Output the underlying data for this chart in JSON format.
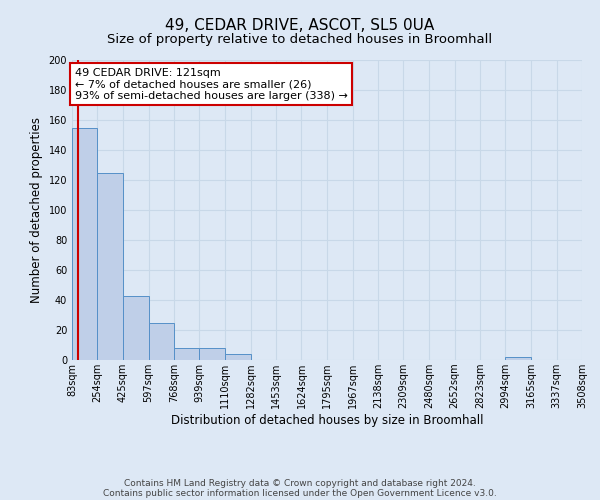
{
  "title": "49, CEDAR DRIVE, ASCOT, SL5 0UA",
  "subtitle": "Size of property relative to detached houses in Broomhall",
  "xlabel": "Distribution of detached houses by size in Broomhall",
  "ylabel": "Number of detached properties",
  "bar_values": [
    155,
    125,
    43,
    25,
    8,
    8,
    4,
    0,
    0,
    0,
    0,
    0,
    0,
    0,
    0,
    0,
    0,
    2,
    0,
    0
  ],
  "bin_edges": [
    83,
    254,
    425,
    597,
    768,
    939,
    1110,
    1282,
    1453,
    1624,
    1795,
    1967,
    2138,
    2309,
    2480,
    2652,
    2823,
    2994,
    3165,
    3337,
    3508
  ],
  "tick_labels": [
    "83sqm",
    "254sqm",
    "425sqm",
    "597sqm",
    "768sqm",
    "939sqm",
    "1110sqm",
    "1282sqm",
    "1453sqm",
    "1624sqm",
    "1795sqm",
    "1967sqm",
    "2138sqm",
    "2309sqm",
    "2480sqm",
    "2652sqm",
    "2823sqm",
    "2994sqm",
    "3165sqm",
    "3337sqm",
    "3508sqm"
  ],
  "bar_color": "#BFCFE8",
  "bar_edge_color": "#5590C8",
  "red_line_x": 121,
  "annotation_line1": "49 CEDAR DRIVE: 121sqm",
  "annotation_line2": "← 7% of detached houses are smaller (26)",
  "annotation_line3": "93% of semi-detached houses are larger (338) →",
  "annotation_box_color": "#ffffff",
  "annotation_border_color": "#cc0000",
  "ylim": [
    0,
    200
  ],
  "yticks": [
    0,
    20,
    40,
    60,
    80,
    100,
    120,
    140,
    160,
    180,
    200
  ],
  "background_color": "#dde8f5",
  "plot_bg_color": "#dde8f5",
  "grid_color": "#c8d8e8",
  "footer_line1": "Contains HM Land Registry data © Crown copyright and database right 2024.",
  "footer_line2": "Contains public sector information licensed under the Open Government Licence v3.0.",
  "title_fontsize": 11,
  "subtitle_fontsize": 9.5,
  "axis_label_fontsize": 8.5,
  "tick_fontsize": 7,
  "annotation_fontsize": 8,
  "footer_fontsize": 6.5
}
